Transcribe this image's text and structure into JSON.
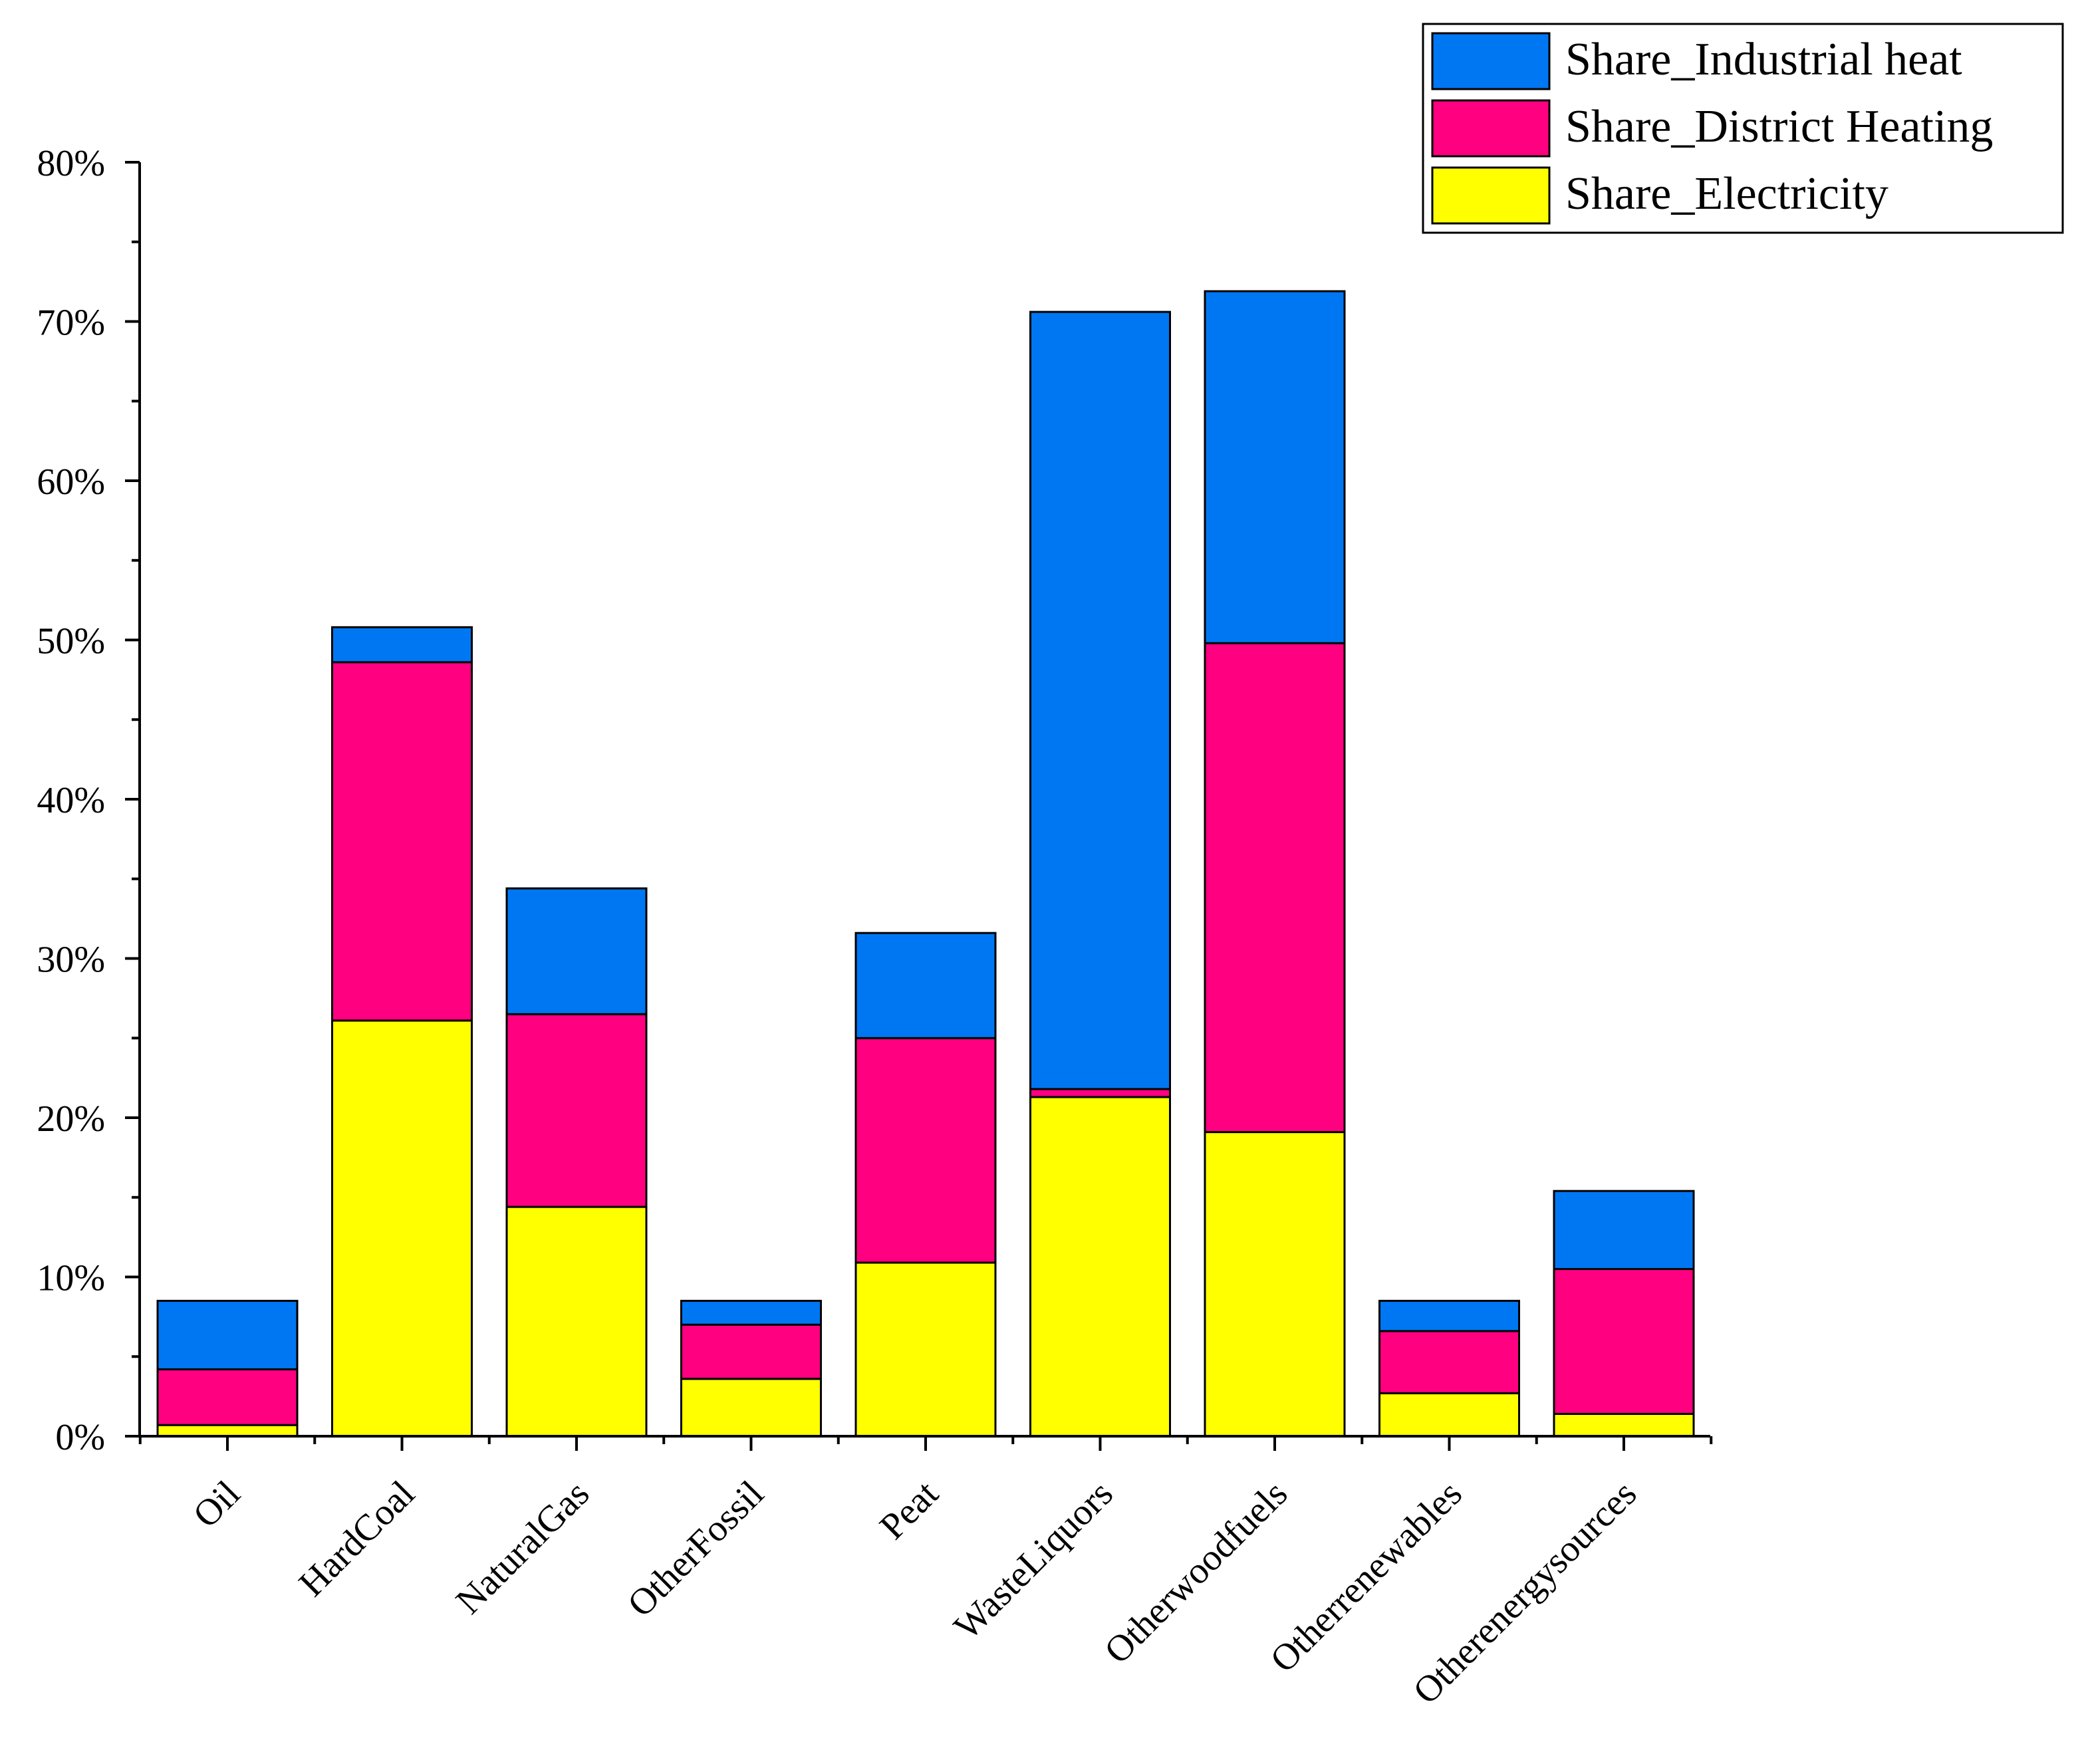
{
  "chart_data": {
    "type": "bar",
    "stacked": true,
    "title": "",
    "xlabel": "",
    "ylabel": "",
    "ylim": [
      0,
      80
    ],
    "y_ticks": [
      "0%",
      "10%",
      "20%",
      "30%",
      "40%",
      "50%",
      "60%",
      "70%",
      "80%"
    ],
    "y_tick_values": [
      0,
      10,
      20,
      30,
      40,
      50,
      60,
      70,
      80
    ],
    "legend_position": "top-right",
    "grid": false,
    "categories": [
      "Oil",
      "HardCoal",
      "NaturalGas",
      "OtherFossil",
      "Peat",
      "WasteLiquors",
      "Otherwoodfuels",
      "Otherrenewables",
      "Otherenergysources"
    ],
    "series": [
      {
        "name": "Share_Electricity",
        "color": "#ffff00",
        "values": [
          0.7,
          26.1,
          14.4,
          3.6,
          10.9,
          21.3,
          19.1,
          2.7,
          1.4
        ]
      },
      {
        "name": "Share_District Heating",
        "color": "#ff0080",
        "values": [
          3.5,
          22.5,
          12.1,
          3.4,
          14.1,
          0.5,
          30.7,
          3.9,
          9.1
        ]
      },
      {
        "name": "Share_Industrial heat",
        "color": "#0077f2",
        "values": [
          4.3,
          2.2,
          7.9,
          1.5,
          6.6,
          48.8,
          22.1,
          1.9,
          4.9
        ]
      }
    ],
    "legend_order": [
      "Share_Industrial heat",
      "Share_District Heating",
      "Share_Electricity"
    ]
  }
}
